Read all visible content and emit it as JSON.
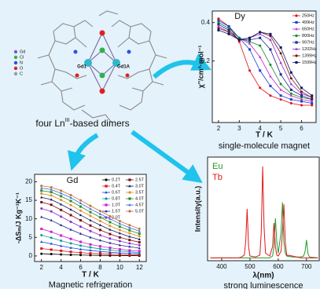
{
  "molecule": {
    "legend": [
      {
        "label": "Gd",
        "color": "#8a56c2"
      },
      {
        "label": "Cl",
        "color": "#2fb24a"
      },
      {
        "label": "N",
        "color": "#2f4fd8"
      },
      {
        "label": "O",
        "color": "#e02020"
      },
      {
        "label": "C",
        "color": "#9a9a9a"
      }
    ],
    "atom_labels": [
      "Gd1",
      "Gd1A"
    ],
    "caption": {
      "before": "four Ln",
      "sup": "III",
      "after": "-based dimers"
    }
  },
  "chart_data": [
    {
      "type": "line",
      "title": "Dy",
      "x_label": "T / K",
      "y_label": "χ''/cm³·mol⁻¹",
      "caption": "single-molecule magnet",
      "x": [
        2,
        2.5,
        3,
        3.5,
        4,
        4.5,
        5,
        5.5,
        6,
        6.5
      ],
      "xlim": [
        1.7,
        6.7
      ],
      "xticks": [
        2,
        3,
        4,
        5,
        6
      ],
      "ylim": [
        -0.12,
        0.46
      ],
      "yticks": [
        0.2,
        0.4
      ],
      "markers": true,
      "legend": "upper right",
      "series": [
        {
          "name": "250Hz",
          "color": "#e01010",
          "values": [
            0.42,
            0.38,
            0.3,
            0.15,
            0.06,
            0.02,
            0.0,
            -0.02,
            -0.03,
            -0.03
          ]
        },
        {
          "name": "499Hz",
          "color": "#1a3fd6",
          "values": [
            0.41,
            0.38,
            0.32,
            0.26,
            0.15,
            0.07,
            0.02,
            0.0,
            -0.01,
            -0.02
          ]
        },
        {
          "name": "650Hz",
          "color": "#d020d0",
          "values": [
            0.4,
            0.37,
            0.32,
            0.29,
            0.22,
            0.12,
            0.05,
            0.02,
            0.0,
            -0.01
          ]
        },
        {
          "name": "800Hz",
          "color": "#118a2a",
          "values": [
            0.4,
            0.37,
            0.32,
            0.3,
            0.28,
            0.18,
            0.08,
            0.03,
            0.01,
            0.0
          ]
        },
        {
          "name": "997Hz",
          "color": "#1c2a8c",
          "values": [
            0.39,
            0.36,
            0.31,
            0.31,
            0.32,
            0.26,
            0.13,
            0.05,
            0.02,
            0.0
          ]
        },
        {
          "name": "1202Hz",
          "color": "#8a2bd0",
          "values": [
            0.38,
            0.35,
            0.31,
            0.32,
            0.34,
            0.31,
            0.19,
            0.08,
            0.03,
            0.01
          ]
        },
        {
          "name": "1399Hz",
          "color": "#7a1010",
          "values": [
            0.37,
            0.35,
            0.31,
            0.32,
            0.35,
            0.33,
            0.24,
            0.11,
            0.04,
            0.01
          ]
        },
        {
          "name": "1599Hz",
          "color": "#10186a",
          "values": [
            0.36,
            0.34,
            0.31,
            0.32,
            0.35,
            0.34,
            0.27,
            0.14,
            0.06,
            0.02
          ]
        }
      ]
    },
    {
      "type": "line",
      "title": "Gd",
      "x_label": "T / K",
      "y_label": "-ΔSₘ/J Kg⁻¹K⁻¹",
      "caption": "Magnetic refrigeration",
      "x": [
        2,
        3,
        4,
        5,
        6,
        7,
        8,
        9,
        10,
        11,
        12
      ],
      "xlim": [
        1.3,
        12.7
      ],
      "xticks": [
        2,
        4,
        6,
        8,
        10,
        12
      ],
      "ylim": [
        -1.5,
        22
      ],
      "yticks": [
        0,
        5,
        10,
        15,
        20
      ],
      "markers": true,
      "legend": "upper right",
      "series": [
        {
          "name": "0.2T",
          "color": "#000000",
          "values": [
            0.6,
            0.5,
            0.4,
            0.3,
            0.25,
            0.2,
            0.15,
            0.1,
            0.1,
            0.1,
            0.05
          ]
        },
        {
          "name": "0.4T",
          "color": "#e01010",
          "values": [
            2.0,
            1.7,
            1.4,
            1.1,
            0.9,
            0.7,
            0.6,
            0.5,
            0.4,
            0.3,
            0.3
          ]
        },
        {
          "name": "0.6T",
          "color": "#1a3fd6",
          "values": [
            3.8,
            3.3,
            2.7,
            2.2,
            1.8,
            1.5,
            1.2,
            1.0,
            0.8,
            0.7,
            0.6
          ]
        },
        {
          "name": "0.8T",
          "color": "#0c9a9a",
          "values": [
            5.6,
            4.9,
            4.1,
            3.4,
            2.8,
            2.3,
            1.9,
            1.6,
            1.3,
            1.1,
            0.9
          ]
        },
        {
          "name": "1.0T",
          "color": "#d020d0",
          "values": [
            7.3,
            6.5,
            5.5,
            4.6,
            3.8,
            3.1,
            2.6,
            2.2,
            1.8,
            1.5,
            1.3
          ]
        },
        {
          "name": "1.5T",
          "color": "#1c2a8c",
          "values": [
            10.5,
            9.6,
            8.3,
            7.1,
            6.0,
            5.0,
            4.2,
            3.5,
            2.9,
            2.5,
            2.1
          ]
        },
        {
          "name": "2.0T",
          "color": "#8a2bd0",
          "values": [
            12.8,
            12.0,
            10.6,
            9.2,
            7.9,
            6.7,
            5.6,
            4.7,
            4.0,
            3.4,
            2.9
          ]
        },
        {
          "name": "2.5T",
          "color": "#7a1010",
          "values": [
            14.5,
            13.8,
            12.4,
            11.0,
            9.6,
            8.2,
            7.0,
            5.9,
            5.0,
            4.3,
            3.7
          ]
        },
        {
          "name": "3.0T",
          "color": "#10186a",
          "values": [
            15.8,
            15.2,
            13.9,
            12.5,
            11.0,
            9.6,
            8.3,
            7.1,
            6.1,
            5.2,
            4.5
          ]
        },
        {
          "name": "3.5T",
          "color": "#d8901a",
          "values": [
            16.8,
            16.3,
            15.1,
            13.7,
            12.2,
            10.8,
            9.4,
            8.1,
            7.0,
            6.1,
            5.3
          ]
        },
        {
          "name": "4.0T",
          "color": "#2a8a2a",
          "values": [
            17.6,
            17.2,
            16.1,
            14.8,
            13.3,
            11.8,
            10.4,
            9.1,
            7.9,
            6.9,
            6.0
          ]
        },
        {
          "name": "4.5T",
          "color": "#3a6ae0",
          "values": [
            18.3,
            17.9,
            16.9,
            15.7,
            14.2,
            12.7,
            11.3,
            10.0,
            8.7,
            7.6,
            6.7
          ]
        },
        {
          "name": "5.0T",
          "color": "#c0703a",
          "values": [
            18.9,
            18.5,
            17.6,
            16.4,
            15.0,
            13.5,
            12.1,
            10.7,
            9.4,
            8.3,
            7.3
          ]
        }
      ]
    },
    {
      "type": "line",
      "x_label": "λ(nm)",
      "y_label": "Intensity(a.u.)",
      "caption": "strong luminescence",
      "x": [
        360,
        380,
        400,
        420,
        440,
        460,
        470,
        480,
        485,
        490,
        495,
        500,
        520,
        535,
        540,
        545,
        550,
        555,
        570,
        580,
        585,
        590,
        595,
        600,
        610,
        615,
        620,
        625,
        630,
        650,
        680,
        690,
        695,
        700,
        705,
        710,
        740
      ],
      "xlim": [
        350,
        745
      ],
      "xticks": [
        400,
        500,
        600,
        700
      ],
      "ylim": [
        0,
        1.1
      ],
      "markers": false,
      "legend": "upper left",
      "series": [
        {
          "name": "Eu",
          "color": "#1f9a2a",
          "values": [
            0.03,
            0.03,
            0.03,
            0.03,
            0.03,
            0.03,
            0.03,
            0.03,
            0.03,
            0.03,
            0.03,
            0.03,
            0.03,
            0.03,
            0.03,
            0.03,
            0.03,
            0.03,
            0.03,
            0.05,
            0.15,
            0.45,
            0.2,
            0.08,
            0.3,
            0.62,
            0.2,
            0.08,
            0.05,
            0.04,
            0.04,
            0.05,
            0.1,
            0.22,
            0.08,
            0.04,
            0.03
          ]
        },
        {
          "name": "Tb",
          "color": "#e01818",
          "values": [
            0.03,
            0.03,
            0.03,
            0.03,
            0.03,
            0.03,
            0.04,
            0.06,
            0.2,
            0.55,
            0.15,
            0.05,
            0.04,
            0.06,
            0.3,
            1.0,
            0.35,
            0.08,
            0.05,
            0.15,
            0.4,
            0.15,
            0.06,
            0.05,
            0.1,
            0.3,
            0.6,
            0.2,
            0.06,
            0.05,
            0.03,
            0.03,
            0.03,
            0.03,
            0.03,
            0.03,
            0.03
          ]
        }
      ]
    }
  ]
}
